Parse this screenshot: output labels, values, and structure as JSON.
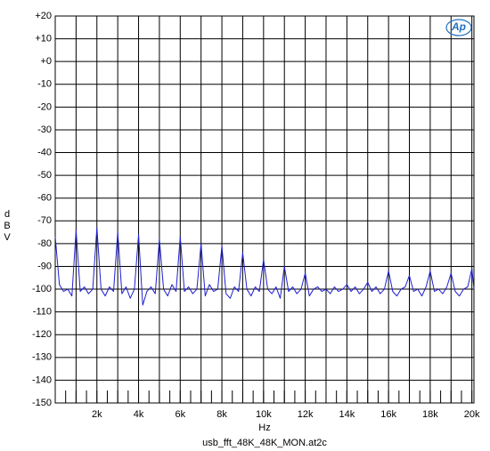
{
  "chart_data": {
    "type": "line",
    "y_label": "dBV",
    "x_label": "Hz",
    "footer": "usb_fft_48K_48K_MON.at2c",
    "logo": "Ap",
    "xlim": [
      0,
      20100
    ],
    "ylim": [
      -150,
      20
    ],
    "grid": true,
    "yticks": [
      {
        "value": 20,
        "label": "+20"
      },
      {
        "value": 10,
        "label": "+10"
      },
      {
        "value": 0,
        "label": "+0"
      },
      -10,
      -20,
      -30,
      -40,
      -50,
      -60,
      -70,
      -80,
      -90,
      -100,
      -110,
      -120,
      -130,
      -140,
      -150
    ],
    "xticks": [
      {
        "value": 2000,
        "label": "2k"
      },
      {
        "value": 4000,
        "label": "4k"
      },
      {
        "value": 6000,
        "label": "6k"
      },
      {
        "value": 8000,
        "label": "8k"
      },
      {
        "value": 10000,
        "label": "10k"
      },
      {
        "value": 12000,
        "label": "12k"
      },
      {
        "value": 14000,
        "label": "14k"
      },
      {
        "value": 16000,
        "label": "16k"
      },
      {
        "value": 18000,
        "label": "18k"
      },
      {
        "value": 20000,
        "label": "20k"
      }
    ],
    "xgrid": [
      1000,
      3000,
      5000,
      7000,
      9000,
      11000,
      13000,
      15000,
      17000,
      19000
    ],
    "xminor": [
      500,
      1000,
      1500,
      2000,
      2500,
      3000,
      3500,
      4000,
      4500,
      5000,
      5500,
      6000,
      6500,
      7000,
      7500,
      8000,
      8500,
      9000,
      9500,
      10000,
      10500,
      11000,
      11500,
      12000,
      12500,
      13000,
      13500,
      14000,
      14500,
      15000,
      15500,
      16000,
      16500,
      17000,
      17500,
      18000,
      18500,
      19000,
      19500,
      20000
    ],
    "x": [
      0,
      200,
      400,
      600,
      800,
      1000,
      1200,
      1400,
      1600,
      1800,
      2000,
      2200,
      2400,
      2600,
      2800,
      3000,
      3200,
      3400,
      3600,
      3800,
      4000,
      4200,
      4400,
      4600,
      4800,
      5000,
      5200,
      5400,
      5600,
      5800,
      6000,
      6200,
      6400,
      6600,
      6800,
      7000,
      7200,
      7400,
      7600,
      7800,
      8000,
      8200,
      8400,
      8600,
      8800,
      9000,
      9200,
      9400,
      9600,
      9800,
      10000,
      10200,
      10400,
      10600,
      10800,
      11000,
      11200,
      11400,
      11600,
      11800,
      12000,
      12200,
      12400,
      12600,
      12800,
      13000,
      13200,
      13400,
      13600,
      13800,
      14000,
      14200,
      14400,
      14600,
      14800,
      15000,
      15200,
      15400,
      15600,
      15800,
      16000,
      16200,
      16400,
      16600,
      16800,
      17000,
      17200,
      17400,
      17600,
      17800,
      18000,
      18200,
      18400,
      18600,
      18800,
      19000,
      19200,
      19400,
      19600,
      19800,
      20000,
      20100
    ],
    "series": [
      {
        "color": "#1f1fd0",
        "values": [
          -77,
          -98,
          -101,
          -100,
          -103,
          -74,
          -101,
          -99,
          -102,
          -100,
          -73,
          -100,
          -103,
          -99,
          -101,
          -75,
          -102,
          -99,
          -104,
          -100,
          -76,
          -107,
          -101,
          -99,
          -102,
          -78,
          -100,
          -103,
          -98,
          -101,
          -77,
          -101,
          -99,
          -102,
          -100,
          -80,
          -103,
          -98,
          -101,
          -100,
          -81,
          -102,
          -104,
          -99,
          -101,
          -84,
          -100,
          -103,
          -99,
          -101,
          -87,
          -100,
          -102,
          -99,
          -104,
          -90,
          -101,
          -99,
          -102,
          -100,
          -93,
          -103,
          -100,
          -99,
          -101,
          -100,
          -102,
          -99,
          -101,
          -100,
          -98,
          -101,
          -99,
          -102,
          -100,
          -97,
          -101,
          -99,
          -102,
          -100,
          -92,
          -101,
          -103,
          -100,
          -99,
          -94,
          -101,
          -100,
          -103,
          -99,
          -92,
          -101,
          -100,
          -102,
          -99,
          -93,
          -101,
          -103,
          -100,
          -99,
          -91,
          -100
        ]
      }
    ]
  }
}
